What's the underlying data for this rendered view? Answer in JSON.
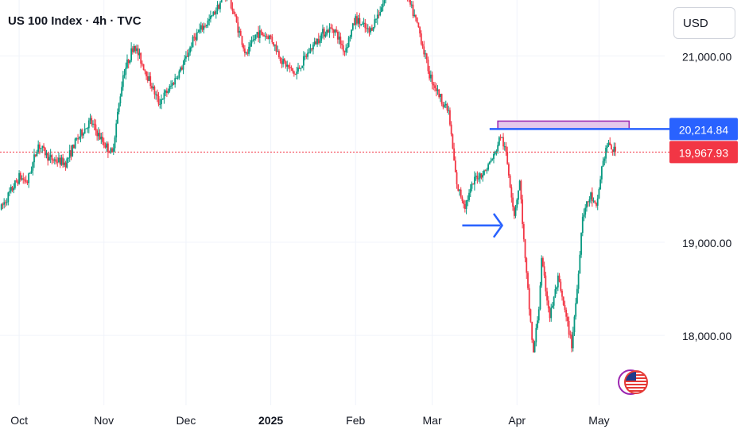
{
  "header": {
    "title": "US 100 Index · 4h · TVC",
    "currency": "USD"
  },
  "colors": {
    "up": "#089981",
    "down": "#f23645",
    "zone": "#e1bee7",
    "zone_border": "#9c27b0",
    "arrow": "#2962ff",
    "grid": "#f0f3fa",
    "price_line": "#f23645"
  },
  "chart_data": {
    "type": "candlestick",
    "title": "US 100 Index · 4h · TVC",
    "y_ticks": [
      "21,000.00",
      "19,000.00",
      "18,000.00"
    ],
    "y_tick_values": [
      21000,
      19000,
      18000
    ],
    "x_ticks": [
      "Oct",
      "Nov",
      "Dec",
      "2025",
      "Feb",
      "Mar",
      "Apr",
      "May"
    ],
    "x_tick_dates": [
      "2024-10-01",
      "2024-11-01",
      "2024-12-01",
      "2025-01-01",
      "2025-02-01",
      "2025-03-01",
      "2025-04-01",
      "2025-05-01"
    ],
    "x_range": [
      "2024-09-24",
      "2025-05-25"
    ],
    "y_range": [
      17250,
      21600
    ],
    "grid": true,
    "levels": {
      "resistance": {
        "label": "20,214.84",
        "value": 20214.84,
        "color": "#2962ff"
      },
      "last_price": {
        "label": "19,967.93",
        "value": 19967.93,
        "color": "#f23645"
      }
    },
    "annotations": {
      "zone": {
        "x_start": "2025-03-25",
        "x_end": "2025-05-12",
        "y_low": 20214.84,
        "y_high": 20300,
        "color": "#e1bee7"
      },
      "arrow": {
        "x_start": "2025-03-12",
        "x_end": "2025-03-26",
        "y": 19180,
        "color": "#2962ff"
      }
    },
    "series": [
      {
        "waypoints": [
          [
            "2024-09-24",
            19350
          ],
          [
            "2024-10-01",
            19700
          ],
          [
            "2024-10-04",
            19650
          ],
          [
            "2024-10-08",
            20050
          ],
          [
            "2024-10-12",
            19900
          ],
          [
            "2024-10-18",
            19850
          ],
          [
            "2024-10-22",
            20100
          ],
          [
            "2024-10-27",
            20300
          ],
          [
            "2024-10-31",
            20100
          ],
          [
            "2024-11-04",
            19950
          ],
          [
            "2024-11-08",
            20800
          ],
          [
            "2024-11-12",
            21120
          ],
          [
            "2024-11-16",
            20850
          ],
          [
            "2024-11-21",
            20500
          ],
          [
            "2024-11-25",
            20650
          ],
          [
            "2024-11-30",
            20900
          ],
          [
            "2024-12-04",
            21200
          ],
          [
            "2024-12-10",
            21400
          ],
          [
            "2024-12-16",
            21700
          ],
          [
            "2024-12-19",
            21400
          ],
          [
            "2024-12-23",
            21000
          ],
          [
            "2024-12-27",
            21250
          ],
          [
            "2025-01-01",
            21200
          ],
          [
            "2025-01-05",
            20950
          ],
          [
            "2025-01-10",
            20800
          ],
          [
            "2025-01-15",
            21050
          ],
          [
            "2025-01-20",
            21250
          ],
          [
            "2025-01-24",
            21300
          ],
          [
            "2025-01-28",
            21050
          ],
          [
            "2025-02-01",
            21400
          ],
          [
            "2025-02-06",
            21250
          ],
          [
            "2025-02-10",
            21500
          ],
          [
            "2025-02-14",
            21750
          ],
          [
            "2025-02-19",
            21700
          ],
          [
            "2025-02-24",
            21300
          ],
          [
            "2025-02-28",
            20800
          ],
          [
            "2025-03-04",
            20550
          ],
          [
            "2025-03-07",
            20400
          ],
          [
            "2025-03-10",
            19600
          ],
          [
            "2025-03-13",
            19400
          ],
          [
            "2025-03-17",
            19700
          ],
          [
            "2025-03-20",
            19750
          ],
          [
            "2025-03-24",
            19950
          ],
          [
            "2025-03-26",
            20150
          ],
          [
            "2025-03-28",
            19950
          ],
          [
            "2025-03-31",
            19300
          ],
          [
            "2025-04-02",
            19650
          ],
          [
            "2025-04-04",
            18800
          ],
          [
            "2025-04-07",
            17800
          ],
          [
            "2025-04-09",
            18300
          ],
          [
            "2025-04-10",
            18800
          ],
          [
            "2025-04-13",
            18200
          ],
          [
            "2025-04-16",
            18600
          ],
          [
            "2025-04-21",
            17900
          ],
          [
            "2025-04-23",
            18500
          ],
          [
            "2025-04-25",
            19300
          ],
          [
            "2025-04-28",
            19500
          ],
          [
            "2025-04-30",
            19350
          ],
          [
            "2025-05-02",
            19800
          ],
          [
            "2025-05-04",
            20050
          ],
          [
            "2025-05-07",
            19967.93
          ]
        ]
      }
    ]
  }
}
